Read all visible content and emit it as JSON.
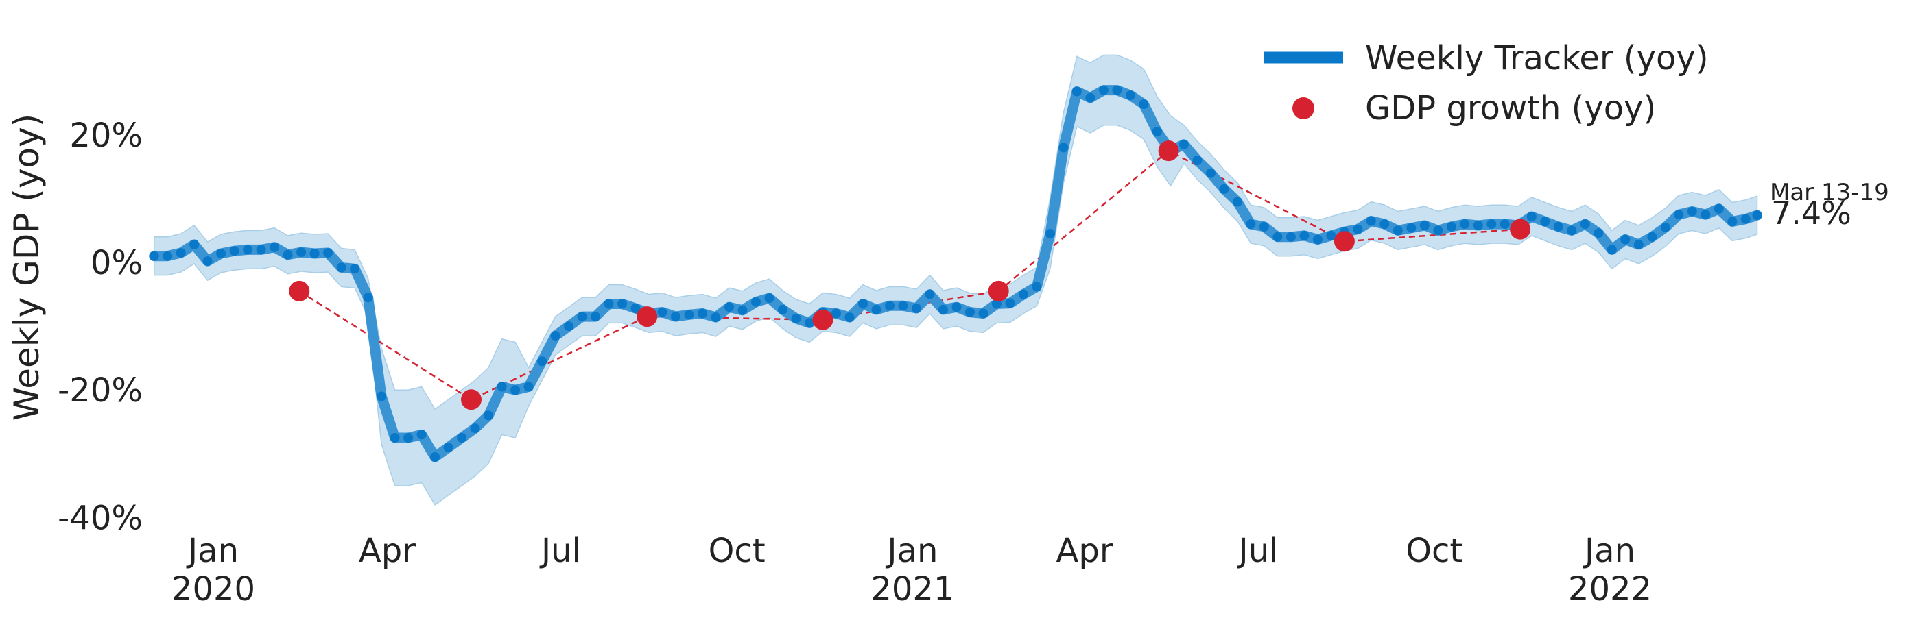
{
  "chart_data": {
    "type": "line",
    "ylabel": "Weekly GDP (yoy)",
    "ylim": [
      -40,
      36
    ],
    "y_ticks": [
      "20%",
      "0%",
      "-20%",
      "-40%"
    ],
    "y_tick_values": [
      20,
      0,
      -20,
      -40
    ],
    "x_ticks": [
      {
        "date": "2020-01-01",
        "label": "Jan",
        "year": "2020"
      },
      {
        "date": "2020-04-01",
        "label": "Apr",
        "year": ""
      },
      {
        "date": "2020-07-01",
        "label": "Jul",
        "year": ""
      },
      {
        "date": "2020-10-01",
        "label": "Oct",
        "year": ""
      },
      {
        "date": "2021-01-01",
        "label": "Jan",
        "year": "2021"
      },
      {
        "date": "2021-04-01",
        "label": "Apr",
        "year": ""
      },
      {
        "date": "2021-07-01",
        "label": "Jul",
        "year": ""
      },
      {
        "date": "2021-10-01",
        "label": "Oct",
        "year": ""
      },
      {
        "date": "2022-01-01",
        "label": "Jan",
        "year": "2022"
      }
    ],
    "grid": false,
    "legend_position": "top-right",
    "colors": {
      "tracker": "#0a78c8",
      "band": "#c9e1f1",
      "gdp": "#d62130"
    },
    "series": [
      {
        "name": "Weekly Tracker (yoy)",
        "kind": "line-with-band",
        "points": [
          [
            "2019-12-01",
            1.0
          ],
          [
            "2019-12-08",
            1.0
          ],
          [
            "2019-12-15",
            1.5
          ],
          [
            "2019-12-22",
            2.8
          ],
          [
            "2019-12-29",
            0.2
          ],
          [
            "2020-01-05",
            1.4
          ],
          [
            "2020-01-12",
            1.8
          ],
          [
            "2020-01-19",
            2.0
          ],
          [
            "2020-01-26",
            2.0
          ],
          [
            "2020-02-02",
            2.4
          ],
          [
            "2020-02-09",
            1.2
          ],
          [
            "2020-02-16",
            1.6
          ],
          [
            "2020-02-23",
            1.4
          ],
          [
            "2020-03-01",
            1.5
          ],
          [
            "2020-03-08",
            -0.8
          ],
          [
            "2020-03-15",
            -1.0
          ],
          [
            "2020-03-22",
            -5.5
          ],
          [
            "2020-03-29",
            -21.0
          ],
          [
            "2020-04-05",
            -27.5
          ],
          [
            "2020-04-12",
            -27.5
          ],
          [
            "2020-04-19",
            -27.0
          ],
          [
            "2020-04-26",
            -30.5
          ],
          [
            "2020-05-03",
            -29.0
          ],
          [
            "2020-05-10",
            -27.5
          ],
          [
            "2020-05-17",
            -26.0
          ],
          [
            "2020-05-24",
            -24.0
          ],
          [
            "2020-05-31",
            -19.5
          ],
          [
            "2020-06-07",
            -20.0
          ],
          [
            "2020-06-14",
            -19.5
          ],
          [
            "2020-06-21",
            -15.5
          ],
          [
            "2020-06-28",
            -11.5
          ],
          [
            "2020-07-05",
            -10.0
          ],
          [
            "2020-07-12",
            -8.5
          ],
          [
            "2020-07-19",
            -8.5
          ],
          [
            "2020-07-26",
            -6.5
          ],
          [
            "2020-08-02",
            -6.5
          ],
          [
            "2020-08-09",
            -7.2
          ],
          [
            "2020-08-16",
            -8.0
          ],
          [
            "2020-08-23",
            -7.8
          ],
          [
            "2020-08-30",
            -8.5
          ],
          [
            "2020-09-06",
            -8.2
          ],
          [
            "2020-09-13",
            -8.0
          ],
          [
            "2020-09-20",
            -8.6
          ],
          [
            "2020-09-27",
            -7.0
          ],
          [
            "2020-10-04",
            -7.5
          ],
          [
            "2020-10-11",
            -6.2
          ],
          [
            "2020-10-18",
            -5.6
          ],
          [
            "2020-10-25",
            -7.4
          ],
          [
            "2020-11-01",
            -8.8
          ],
          [
            "2020-11-08",
            -9.5
          ],
          [
            "2020-11-15",
            -7.8
          ],
          [
            "2020-11-22",
            -8.0
          ],
          [
            "2020-11-29",
            -8.6
          ],
          [
            "2020-12-06",
            -6.5
          ],
          [
            "2020-12-13",
            -7.4
          ],
          [
            "2020-12-20",
            -6.8
          ],
          [
            "2020-12-27",
            -6.8
          ],
          [
            "2021-01-03",
            -7.2
          ],
          [
            "2021-01-10",
            -5.0
          ],
          [
            "2021-01-17",
            -7.4
          ],
          [
            "2021-01-24",
            -7.0
          ],
          [
            "2021-01-31",
            -7.8
          ],
          [
            "2021-02-07",
            -8.0
          ],
          [
            "2021-02-14",
            -6.5
          ],
          [
            "2021-02-21",
            -6.4
          ],
          [
            "2021-02-28",
            -5.0
          ],
          [
            "2021-03-07",
            -3.8
          ],
          [
            "2021-03-14",
            4.5
          ],
          [
            "2021-03-21",
            18.0
          ],
          [
            "2021-03-28",
            26.8
          ],
          [
            "2021-04-04",
            25.8
          ],
          [
            "2021-04-11",
            27.0
          ],
          [
            "2021-04-18",
            27.0
          ],
          [
            "2021-04-25",
            26.2
          ],
          [
            "2021-05-02",
            24.8
          ],
          [
            "2021-05-09",
            20.5
          ],
          [
            "2021-05-16",
            17.5
          ],
          [
            "2021-05-23",
            18.5
          ],
          [
            "2021-05-30",
            16.0
          ],
          [
            "2021-06-06",
            14.0
          ],
          [
            "2021-06-13",
            11.5
          ],
          [
            "2021-06-20",
            9.5
          ],
          [
            "2021-06-27",
            6.0
          ],
          [
            "2021-07-04",
            5.6
          ],
          [
            "2021-07-11",
            4.0
          ],
          [
            "2021-07-18",
            4.0
          ],
          [
            "2021-07-25",
            4.2
          ],
          [
            "2021-08-01",
            3.6
          ],
          [
            "2021-08-08",
            4.2
          ],
          [
            "2021-08-15",
            4.8
          ],
          [
            "2021-08-22",
            5.2
          ],
          [
            "2021-08-29",
            6.5
          ],
          [
            "2021-09-05",
            6.0
          ],
          [
            "2021-09-12",
            5.0
          ],
          [
            "2021-09-19",
            5.4
          ],
          [
            "2021-09-26",
            5.8
          ],
          [
            "2021-10-03",
            5.0
          ],
          [
            "2021-10-10",
            5.6
          ],
          [
            "2021-10-17",
            6.0
          ],
          [
            "2021-10-24",
            5.8
          ],
          [
            "2021-10-31",
            6.0
          ],
          [
            "2021-11-07",
            6.0
          ],
          [
            "2021-11-14",
            5.8
          ],
          [
            "2021-11-21",
            7.2
          ],
          [
            "2021-11-28",
            6.4
          ],
          [
            "2021-12-05",
            5.6
          ],
          [
            "2021-12-12",
            5.0
          ],
          [
            "2021-12-19",
            6.0
          ],
          [
            "2021-12-26",
            4.6
          ],
          [
            "2022-01-02",
            2.0
          ],
          [
            "2022-01-09",
            3.6
          ],
          [
            "2022-01-16",
            2.8
          ],
          [
            "2022-01-23",
            4.0
          ],
          [
            "2022-01-30",
            5.5
          ],
          [
            "2022-02-06",
            7.5
          ],
          [
            "2022-02-13",
            8.0
          ],
          [
            "2022-02-20",
            7.5
          ],
          [
            "2022-02-27",
            8.4
          ],
          [
            "2022-03-06",
            6.4
          ],
          [
            "2022-03-13",
            6.8
          ],
          [
            "2022-03-19",
            7.4
          ]
        ]
      },
      {
        "name": "GDP growth (yoy)",
        "kind": "markers-dashed",
        "points": [
          [
            "2020-02-15",
            -4.5
          ],
          [
            "2020-05-15",
            -21.5
          ],
          [
            "2020-08-15",
            -8.5
          ],
          [
            "2020-11-15",
            -9.0
          ],
          [
            "2021-02-15",
            -4.5
          ],
          [
            "2021-05-15",
            17.5
          ],
          [
            "2021-08-15",
            3.3
          ],
          [
            "2021-11-15",
            5.2
          ]
        ]
      }
    ],
    "annotation": {
      "period": "Mar 13-19",
      "value": "7.4%"
    }
  }
}
